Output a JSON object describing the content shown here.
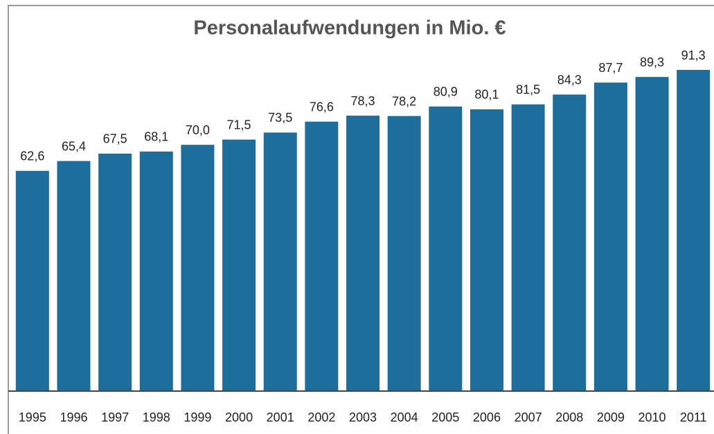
{
  "chart_data": {
    "type": "bar",
    "title": "Personalaufwendungen in Mio. €",
    "categories": [
      "1995",
      "1996",
      "1997",
      "1998",
      "1999",
      "2000",
      "2001",
      "2002",
      "2003",
      "2004",
      "2005",
      "2006",
      "2007",
      "2008",
      "2009",
      "2010",
      "2011"
    ],
    "values": [
      62.6,
      65.4,
      67.5,
      68.1,
      70.0,
      71.5,
      73.5,
      76.6,
      78.3,
      78.2,
      80.9,
      80.1,
      81.5,
      84.3,
      87.7,
      89.3,
      91.3
    ],
    "value_labels": [
      "62,6",
      "65,4",
      "67,5",
      "68,1",
      "70,0",
      "71,5",
      "73,5",
      "76,6",
      "78,3",
      "78,2",
      "80,9",
      "80,1",
      "81,5",
      "84,3",
      "87,7",
      "89,3",
      "91,3"
    ],
    "color": "#1f6d9b"
  }
}
